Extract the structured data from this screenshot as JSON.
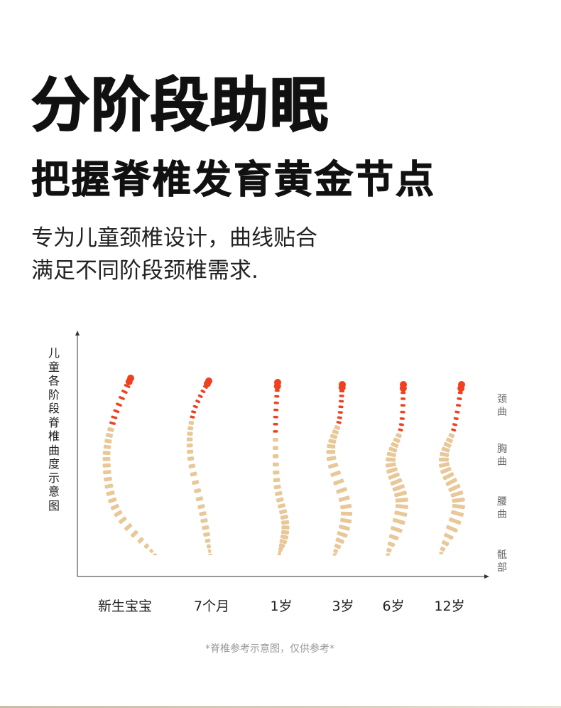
{
  "header": {
    "title": "分阶段助眠",
    "subtitle": "把握脊椎发育黄金节点",
    "description_lines": [
      "专为儿童颈椎设计，曲线贴合",
      "满足不同阶段颈椎需求."
    ]
  },
  "diagram": {
    "y_axis_label": "儿童各阶段脊椎曲度示意图",
    "stages": [
      "新生宝宝",
      "7个月",
      "1岁",
      "3岁",
      "6岁",
      "12岁"
    ],
    "curve_labels": [
      "颈曲",
      "胸曲",
      "腰曲",
      "骶部"
    ],
    "colors": {
      "cervical": "#f0401e",
      "spine": "#e8c898",
      "axis": "#333333"
    }
  },
  "footer": {
    "note": "*脊椎参考示意图，仅供参考*"
  }
}
